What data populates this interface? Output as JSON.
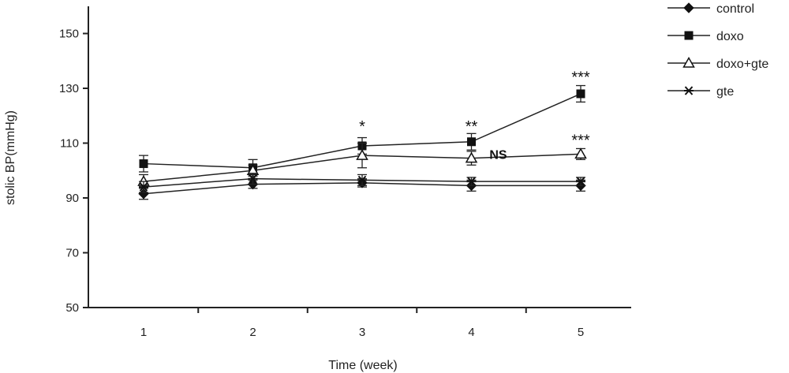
{
  "chart_data": {
    "type": "line",
    "xlabel": "Time (week)",
    "ylabel": "stolic BP(mmHg)",
    "categories": [
      "1",
      "2",
      "3",
      "4",
      "5"
    ],
    "x": [
      1,
      2,
      3,
      4,
      5
    ],
    "ylim": [
      50,
      160
    ],
    "yticks": [
      50,
      70,
      90,
      110,
      130,
      150
    ],
    "grid": false,
    "legend_position": "top-right",
    "series": [
      {
        "name": "control",
        "marker": "diamond",
        "values": [
          91.5,
          95,
          95.5,
          94.5,
          94.5
        ],
        "errors": [
          2,
          1.5,
          1.5,
          2,
          2
        ]
      },
      {
        "name": "doxo",
        "marker": "square",
        "values": [
          102.5,
          101,
          109,
          110.5,
          128
        ],
        "errors": [
          3,
          3,
          3,
          3,
          3
        ]
      },
      {
        "name": "doxo+gte",
        "marker": "triangle",
        "values": [
          96,
          100,
          105.5,
          104.5,
          106
        ],
        "errors": [
          2.5,
          2,
          4.5,
          2.5,
          2
        ]
      },
      {
        "name": "gte",
        "marker": "asterisk",
        "values": [
          94,
          97,
          96.5,
          96,
          96
        ],
        "errors": [
          2,
          2,
          2,
          1.5,
          1.5
        ]
      }
    ],
    "annotations": [
      {
        "text": "*",
        "x": 3,
        "y": 117
      },
      {
        "text": "**",
        "x": 4,
        "y": 117
      },
      {
        "text": "NS",
        "x": 4,
        "y": 106
      },
      {
        "text": "***",
        "x": 5,
        "y": 135
      },
      {
        "text": "***",
        "x": 5,
        "y": 112
      }
    ]
  }
}
